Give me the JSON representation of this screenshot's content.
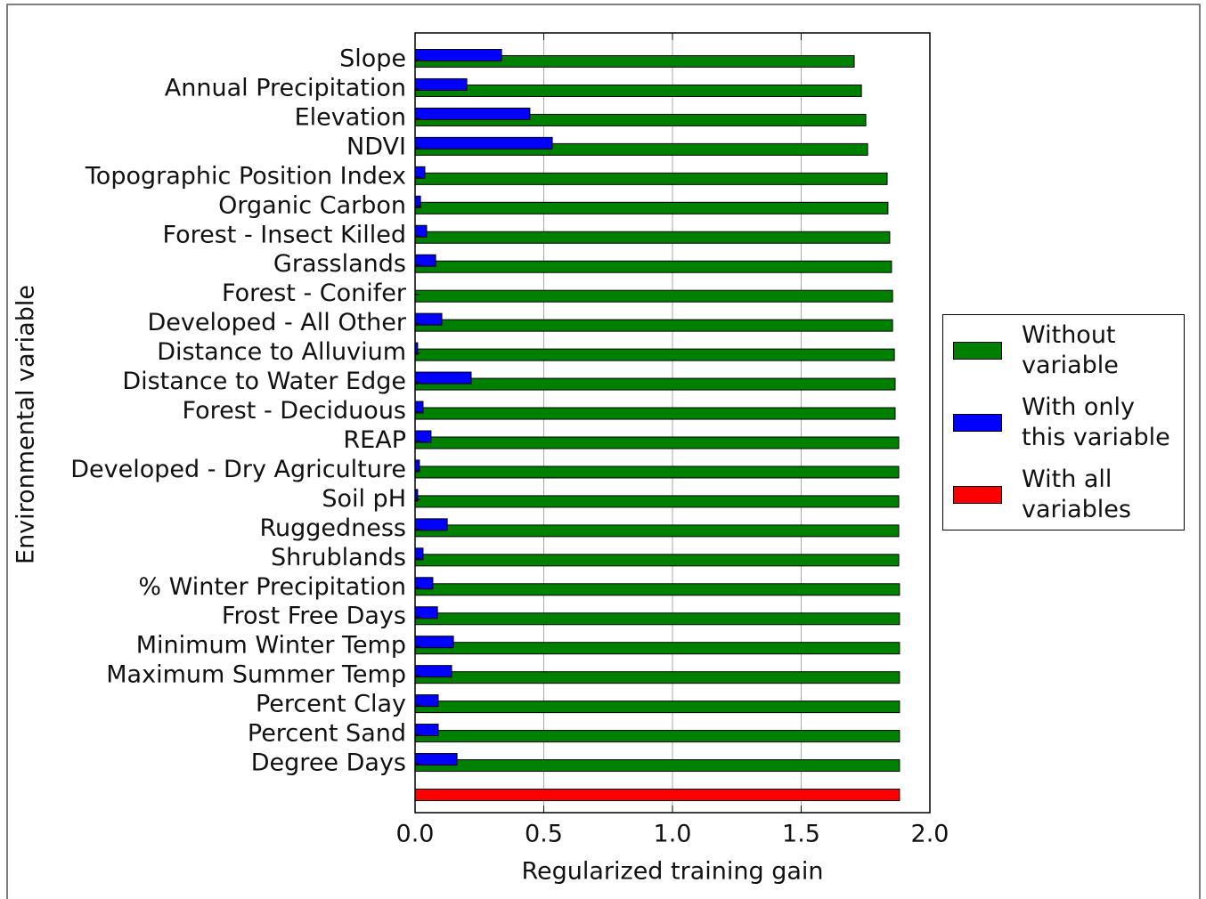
{
  "chart_data": {
    "type": "barh",
    "xlabel": "Regularized training gain",
    "ylabel": "Environmental variable",
    "categories": [
      "Slope",
      "Annual Precipitation",
      "Elevation",
      "NDVI",
      "Topographic Position Index",
      "Organic Carbon",
      "Forest - Insect Killed",
      "Grasslands",
      "Forest - Conifer",
      "Developed - All Other",
      "Distance to Alluvium",
      "Distance to Water Edge",
      "Forest - Deciduous",
      "REAP",
      "Developed - Dry Agriculture",
      "Soil pH",
      "Ruggedness",
      "Shrublands",
      "% Winter Precipitation",
      "Frost Free Days",
      "Minimum Winter Temp",
      "Maximum Summer Temp",
      "Percent Clay",
      "Percent Sand",
      "Degree Days",
      null
    ],
    "series": [
      {
        "name": "Without variable",
        "color": "#008000",
        "values": [
          1.706,
          1.734,
          1.751,
          1.758,
          1.834,
          1.837,
          1.844,
          1.851,
          1.855,
          1.855,
          1.862,
          1.865,
          1.865,
          1.879,
          1.879,
          1.879,
          1.879,
          1.879,
          1.882,
          1.882,
          1.882,
          1.882,
          1.882,
          1.882,
          1.882,
          null
        ]
      },
      {
        "name": "With only this variable",
        "color": "#0000ff",
        "values": [
          0.336,
          0.201,
          0.446,
          0.533,
          0.038,
          0.021,
          0.045,
          0.08,
          0,
          0.104,
          0.01,
          0.218,
          0.031,
          0.062,
          0.017,
          0.01,
          0.125,
          0.031,
          0.069,
          0.087,
          0.149,
          0.142,
          0.09,
          0.09,
          0.163,
          null
        ]
      },
      {
        "name": "With all variables",
        "color": "#ff0000",
        "values": [
          null,
          null,
          null,
          null,
          null,
          null,
          null,
          null,
          null,
          null,
          null,
          null,
          null,
          null,
          null,
          null,
          null,
          null,
          null,
          null,
          null,
          null,
          null,
          null,
          null,
          1.882
        ]
      }
    ],
    "xlim": [
      0,
      2
    ],
    "xticks": [
      {
        "value": 0,
        "label": "0.0"
      },
      {
        "value": 0.5,
        "label": "0.5"
      },
      {
        "value": 1,
        "label": "1.0"
      },
      {
        "value": 1.5,
        "label": "1.5"
      },
      {
        "value": 2,
        "label": "2.0"
      }
    ],
    "grid": true,
    "legend": "right"
  }
}
